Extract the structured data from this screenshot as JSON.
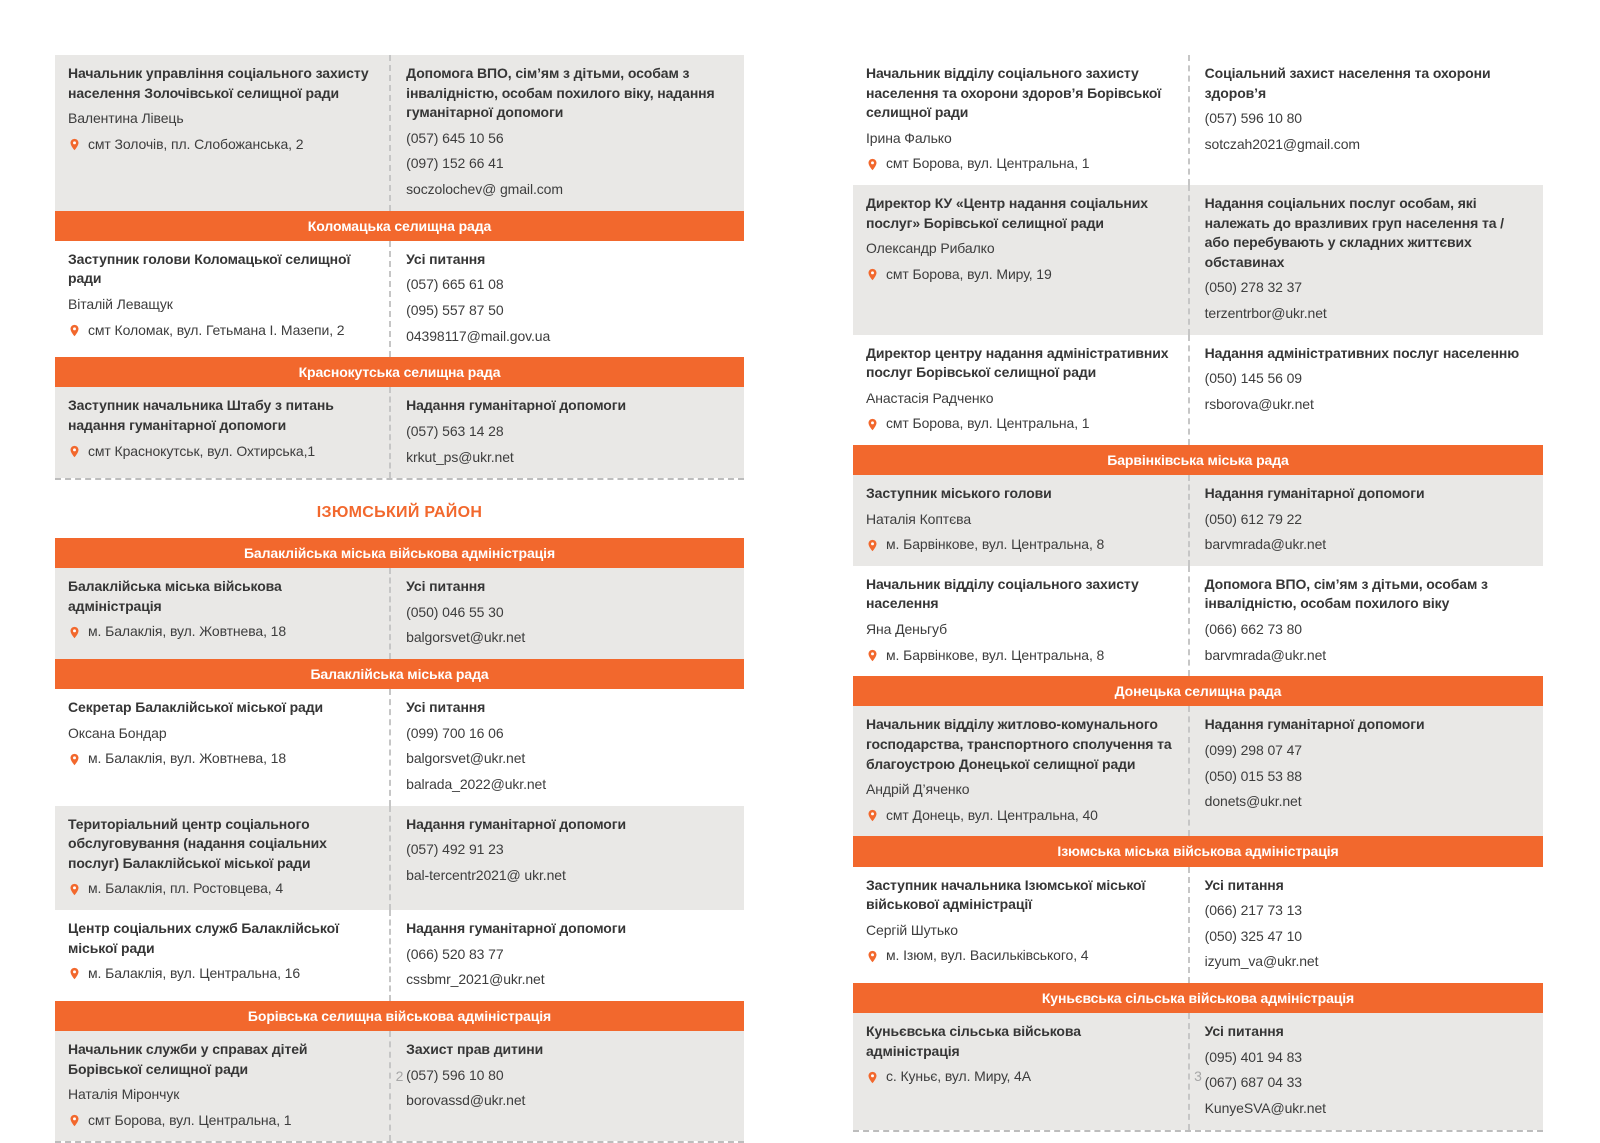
{
  "colors": {
    "accent": "#f2682d",
    "row_gray": "#e9e8e6",
    "header_text": "#ffffff",
    "body_text": "#3d3d3d",
    "dash": "#c6c6c6",
    "page_number": "#a6a6a6"
  },
  "icons": {
    "address_marker": "location-pin-icon"
  },
  "pages": [
    {
      "number": "2",
      "sections": [
        {
          "type": "table",
          "dashed_bottom": true,
          "rows": [
            {
              "kind": "entry",
              "shade": "gray",
              "left": {
                "title": "Начальник управління соціального захисту населення Золочівської селищної ради",
                "name": "Валентина Лівець",
                "address": "смт Золочів, пл. Слобожанська, 2"
              },
              "right": {
                "title": "Допомога ВПО, сім’ям з дітьми, особам з інвалідністю, особам похилого віку, надання гуманітарної допомоги",
                "lines": [
                  "(057) 645 10 56",
                  "(097) 152 66 41",
                  "soczolochev@ gmail.com"
                ]
              }
            },
            {
              "kind": "header",
              "label": "Коломацька селищна рада"
            },
            {
              "kind": "entry",
              "shade": "white",
              "left": {
                "title": "Заступник голови Коломацької селищної ради",
                "name": "Віталій Леващук",
                "address": "смт Коломак, вул. Гетьмана І. Мазепи, 2"
              },
              "right": {
                "title": "Усі питання",
                "lines": [
                  "(057) 665 61 08",
                  "(095) 557 87 50",
                  "04398117@mail.gov.ua"
                ]
              }
            },
            {
              "kind": "header",
              "label": "Краснокутська селищна рада"
            },
            {
              "kind": "entry",
              "shade": "gray",
              "left": {
                "title": "Заступник начальника Штабу з питань надання гуманітарної допомоги",
                "address": "смт Краснокутськ, вул. Охтирська,1"
              },
              "right": {
                "title": "Надання гуманітарної допомоги",
                "lines": [
                  "(057) 563 14 28",
                  "krkut_ps@ukr.net"
                ]
              }
            }
          ]
        },
        {
          "type": "district",
          "label": "ІЗЮМСЬКИЙ РАЙОН"
        },
        {
          "type": "table",
          "dashed_bottom": true,
          "rows": [
            {
              "kind": "header",
              "label": "Балаклійська міська військова адміністрація"
            },
            {
              "kind": "entry",
              "shade": "gray",
              "left": {
                "title": "Балаклійська міська військова адміністрація",
                "address": "м. Балаклія, вул. Жовтнева, 18"
              },
              "right": {
                "title": "Усі питання",
                "lines": [
                  "(050) 046 55 30",
                  "balgorsvet@ukr.net"
                ]
              }
            },
            {
              "kind": "header",
              "label": "Балаклійська міська рада"
            },
            {
              "kind": "entry",
              "shade": "white",
              "left": {
                "title": "Секретар Балаклійської міської ради",
                "name": "Оксана Бондар",
                "address": "м. Балаклія, вул. Жовтнева, 18"
              },
              "right": {
                "title": "Усі питання",
                "lines": [
                  "(099) 700 16 06",
                  "balgorsvet@ukr.net",
                  "balrada_2022@ukr.net"
                ]
              }
            },
            {
              "kind": "entry",
              "shade": "gray",
              "left": {
                "title": "Територіальний центр соціального обслуговування (надання соціальних послуг) Балаклійської міської ради",
                "address": "м. Балаклія, пл. Ростовцева, 4"
              },
              "right": {
                "title": "Надання гуманітарної допомоги",
                "lines": [
                  "(057) 492 91 23",
                  "bal-tercentr2021@ ukr.net"
                ]
              }
            },
            {
              "kind": "entry",
              "shade": "white",
              "left": {
                "title": "Центр соціальних служб Балаклійської міської ради",
                "address": "м. Балаклія, вул. Центральна, 16"
              },
              "right": {
                "title": "Надання гуманітарної допомоги",
                "lines": [
                  "(066) 520 83 77",
                  "cssbmr_2021@ukr.net"
                ]
              }
            },
            {
              "kind": "header",
              "label": "Борівська селищна військова адміністрація"
            },
            {
              "kind": "entry",
              "shade": "gray",
              "left": {
                "title": "Начальник служби у справах дітей Борівської селищної ради",
                "name": "Наталія Мірончук",
                "address": "смт Борова, вул. Центральна, 1"
              },
              "right": {
                "title": "Захист прав дитини",
                "lines": [
                  "(057) 596 10 80",
                  "borovassd@ukr.net"
                ]
              }
            }
          ]
        }
      ]
    },
    {
      "number": "3",
      "sections": [
        {
          "type": "table",
          "dashed_bottom": true,
          "rows": [
            {
              "kind": "entry",
              "shade": "white",
              "left": {
                "title": "Начальник відділу соціального захисту населення та охорони здоров’я Борівської селищної ради",
                "name": "Ірина Фалько",
                "address": "смт Борова, вул. Центральна, 1"
              },
              "right": {
                "title": "Соціальний захист населення та охорони здоров’я",
                "lines": [
                  "(057) 596 10 80",
                  "sotczah2021@gmail.com"
                ]
              }
            },
            {
              "kind": "entry",
              "shade": "gray",
              "left": {
                "title": "Директор КУ «Центр надання соціальних послуг» Борівської селищної ради",
                "name": "Олександр Рибалко",
                "address": "смт Борова, вул. Миру, 19"
              },
              "right": {
                "title": "Надання соціальних послуг особам, які належать до вразливих груп населення та / або перебувають у складних життєвих обставинах",
                "lines": [
                  "(050) 278 32 37",
                  "terzentrbor@ukr.net"
                ]
              }
            },
            {
              "kind": "entry",
              "shade": "white",
              "left": {
                "title": "Директор центру надання адміністративних послуг Борівської селищної ради",
                "name": "Анастасія Радченко",
                "address": "смт Борова, вул. Центральна, 1"
              },
              "right": {
                "title": "Надання адміністративних послуг населенню",
                "lines": [
                  "(050) 145 56 09",
                  "rsborova@ukr.net"
                ]
              }
            },
            {
              "kind": "header",
              "label": "Барвінківська міська рада"
            },
            {
              "kind": "entry",
              "shade": "gray",
              "left": {
                "title": "Заступник міського голови",
                "name": "Наталія Коптєва",
                "address": "м. Барвінкове, вул. Центральна, 8"
              },
              "right": {
                "title": "Надання гуманітарної допомоги",
                "lines": [
                  "(050) 612 79 22",
                  "barvmrada@ukr.net"
                ]
              }
            },
            {
              "kind": "entry",
              "shade": "white",
              "left": {
                "title": "Начальник відділу соціального захисту населення",
                "name": "Яна Деньгуб",
                "address": "м. Барвінкове, вул. Центральна, 8"
              },
              "right": {
                "title": "Допомога ВПО, сім’ям з дітьми, особам з інвалідністю, особам похилого віку",
                "lines": [
                  "(066) 662 73 80",
                  "barvmrada@ukr.net"
                ]
              }
            },
            {
              "kind": "header",
              "label": "Донецька селищна рада"
            },
            {
              "kind": "entry",
              "shade": "gray",
              "left": {
                "title": "Начальник відділу житлово-комунального господарства, транспортного сполучення та благоустрою Донецької селищної ради",
                "name": "Андрій Д’яченко",
                "address": "смт Донець, вул. Центральна, 40"
              },
              "right": {
                "title": "Надання гуманітарної допомоги",
                "lines": [
                  "(099) 298 07 47",
                  "(050) 015 53 88",
                  "donets@ukr.net"
                ]
              }
            },
            {
              "kind": "header",
              "label": "Ізюмська міська військова адміністрація"
            },
            {
              "kind": "entry",
              "shade": "white",
              "left": {
                "title": "Заступник начальника Ізюмської міської військової адміністрації",
                "name": "Сергій Шутько",
                "address": "м. Ізюм, вул. Васильківського, 4"
              },
              "right": {
                "title": "Усі питання",
                "lines": [
                  "(066) 217 73 13",
                  "(050) 325 47 10",
                  "izyum_va@ukr.net"
                ]
              }
            },
            {
              "kind": "header",
              "label": "Куньєвська сільська військова адміністрація"
            },
            {
              "kind": "entry",
              "shade": "gray",
              "left": {
                "title": "Куньєвська сільська військова адміністрація",
                "address": "с. Куньє, вул. Миру, 4А"
              },
              "right": {
                "title": "Усі питання",
                "lines": [
                  "(095) 401 94 83",
                  "(067) 687 04 33",
                  "KunyeSVA@ukr.net"
                ]
              }
            }
          ]
        }
      ]
    }
  ]
}
